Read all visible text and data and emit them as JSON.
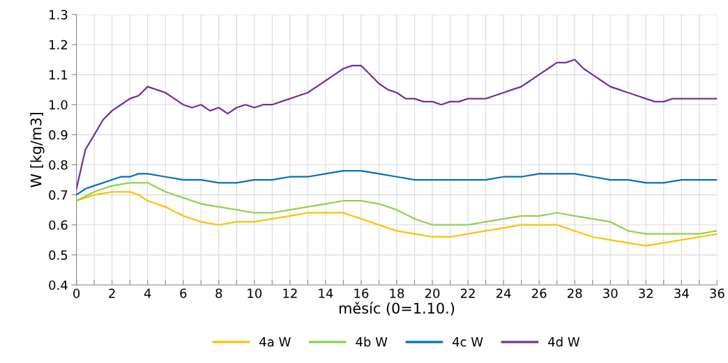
{
  "chart_data": {
    "type": "line",
    "xlabel": "měsíc (0=1.10.)",
    "ylabel": "W [kg/m3]",
    "xlim": [
      0,
      36
    ],
    "xticks": [
      0,
      {
        "value": 1,
        "label": null
      },
      2,
      {
        "value": 3,
        "label": null
      },
      4,
      {
        "value": 5,
        "label": null
      },
      6,
      {
        "value": 7,
        "label": null
      },
      8,
      {
        "value": 9,
        "label": null
      },
      10,
      {
        "value": 11,
        "label": null
      },
      12,
      {
        "value": 13,
        "label": null
      },
      14,
      {
        "value": 15,
        "label": null
      },
      16,
      {
        "value": 17,
        "label": null
      },
      18,
      {
        "value": 19,
        "label": null
      },
      20,
      {
        "value": 21,
        "label": null
      },
      22,
      {
        "value": 23,
        "label": null
      },
      24,
      {
        "value": 25,
        "label": null
      },
      26,
      {
        "value": 27,
        "label": null
      },
      28,
      {
        "value": 29,
        "label": null
      },
      30,
      {
        "value": 31,
        "label": null
      },
      32,
      {
        "value": 33,
        "label": null
      },
      34,
      {
        "value": 35,
        "label": null
      },
      36
    ],
    "ylim": [
      0.4,
      1.3
    ],
    "yticks": [
      0.4,
      0.5,
      0.6,
      0.7,
      0.8,
      0.9,
      {
        "value": 1.0,
        "label": "1.0"
      },
      1.1,
      1.2,
      1.3
    ],
    "grid": true,
    "legend": "bottom",
    "marker": "none",
    "line_style": "solid",
    "series": [
      {
        "name": "4a W",
        "color": "#ffc000",
        "x": [
          0,
          1,
          2,
          3,
          3.5,
          4,
          5,
          6,
          7,
          8,
          9,
          10,
          11,
          12,
          13,
          14,
          15,
          16,
          17,
          18,
          19,
          20,
          21,
          22,
          23,
          24,
          25,
          26,
          27,
          28,
          29,
          30,
          31,
          32,
          33,
          34,
          35,
          36
        ],
        "values": [
          0.68,
          0.7,
          0.71,
          0.71,
          0.7,
          0.68,
          0.66,
          0.63,
          0.61,
          0.6,
          0.61,
          0.61,
          0.62,
          0.63,
          0.64,
          0.64,
          0.64,
          0.62,
          0.6,
          0.58,
          0.57,
          0.56,
          0.56,
          0.57,
          0.58,
          0.59,
          0.6,
          0.6,
          0.6,
          0.58,
          0.56,
          0.55,
          0.54,
          0.53,
          0.54,
          0.55,
          0.56,
          0.57
        ]
      },
      {
        "name": "4b W",
        "color": "#92d050",
        "x": [
          0,
          1,
          2,
          3,
          4,
          5,
          6,
          7,
          8,
          9,
          10,
          11,
          12,
          13,
          14,
          15,
          16,
          17,
          18,
          19,
          20,
          21,
          22,
          23,
          24,
          25,
          26,
          27,
          28,
          29,
          30,
          31,
          32,
          33,
          34,
          35,
          36
        ],
        "values": [
          0.68,
          0.71,
          0.73,
          0.74,
          0.74,
          0.71,
          0.69,
          0.67,
          0.66,
          0.65,
          0.64,
          0.64,
          0.65,
          0.66,
          0.67,
          0.68,
          0.68,
          0.67,
          0.65,
          0.62,
          0.6,
          0.6,
          0.6,
          0.61,
          0.62,
          0.63,
          0.63,
          0.64,
          0.63,
          0.62,
          0.61,
          0.58,
          0.57,
          0.57,
          0.57,
          0.57,
          0.58
        ]
      },
      {
        "name": "4c W",
        "color": "#0070c0",
        "x": [
          0,
          0.5,
          1,
          1.5,
          2,
          2.5,
          3,
          3.5,
          4,
          5,
          6,
          7,
          8,
          9,
          10,
          11,
          12,
          13,
          14,
          15,
          16,
          17,
          18,
          19,
          20,
          21,
          22,
          23,
          24,
          25,
          26,
          27,
          28,
          29,
          30,
          31,
          32,
          33,
          34,
          35,
          36
        ],
        "values": [
          0.7,
          0.72,
          0.73,
          0.74,
          0.75,
          0.76,
          0.76,
          0.77,
          0.77,
          0.76,
          0.75,
          0.75,
          0.74,
          0.74,
          0.75,
          0.75,
          0.76,
          0.76,
          0.77,
          0.78,
          0.78,
          0.77,
          0.76,
          0.75,
          0.75,
          0.75,
          0.75,
          0.75,
          0.76,
          0.76,
          0.77,
          0.77,
          0.77,
          0.76,
          0.75,
          0.75,
          0.74,
          0.74,
          0.75,
          0.75,
          0.75
        ]
      },
      {
        "name": "4d W",
        "color": "#7030a0",
        "x": [
          0,
          0.5,
          1,
          1.5,
          2,
          2.5,
          3,
          3.5,
          4,
          4.5,
          5,
          5.5,
          6,
          6.5,
          7,
          7.5,
          8,
          8.5,
          9,
          9.5,
          10,
          10.5,
          11,
          11.5,
          12,
          12.5,
          13,
          13.5,
          14,
          14.5,
          15,
          15.5,
          16,
          16.5,
          17,
          17.5,
          18,
          18.5,
          19,
          19.5,
          20,
          20.5,
          21,
          21.5,
          22,
          22.5,
          23,
          23.5,
          24,
          24.5,
          25,
          25.5,
          26,
          26.5,
          27,
          27.5,
          28,
          28.5,
          29,
          29.5,
          30,
          30.5,
          31,
          31.5,
          32,
          32.5,
          33,
          33.5,
          34,
          34.5,
          35,
          35.5,
          36
        ],
        "values": [
          0.72,
          0.85,
          0.9,
          0.95,
          0.98,
          1.0,
          1.02,
          1.03,
          1.06,
          1.05,
          1.04,
          1.02,
          1.0,
          0.99,
          1.0,
          0.98,
          0.99,
          0.97,
          0.99,
          1.0,
          0.99,
          1.0,
          1.0,
          1.01,
          1.02,
          1.03,
          1.04,
          1.06,
          1.08,
          1.1,
          1.12,
          1.13,
          1.13,
          1.1,
          1.07,
          1.05,
          1.04,
          1.02,
          1.02,
          1.01,
          1.01,
          1.0,
          1.01,
          1.01,
          1.02,
          1.02,
          1.02,
          1.03,
          1.04,
          1.05,
          1.06,
          1.08,
          1.1,
          1.12,
          1.14,
          1.14,
          1.15,
          1.12,
          1.1,
          1.08,
          1.06,
          1.05,
          1.04,
          1.03,
          1.02,
          1.01,
          1.01,
          1.02,
          1.02,
          1.02,
          1.02,
          1.02,
          1.02
        ]
      }
    ]
  }
}
